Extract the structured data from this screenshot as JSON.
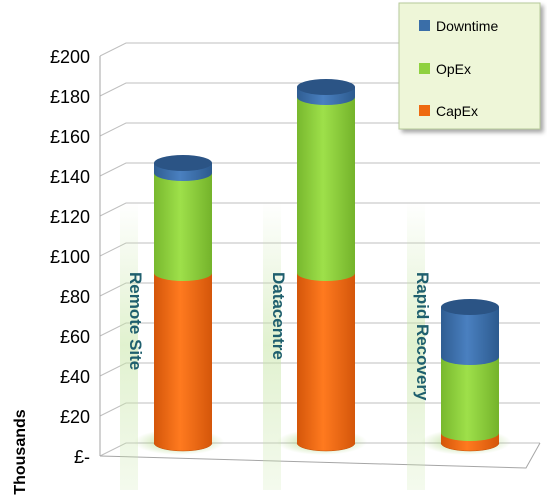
{
  "chart_data": {
    "type": "bar",
    "stacked": true,
    "style": "3d-cylinder",
    "categories": [
      "Remote Site",
      "Datacentre",
      "Rapid Recovery"
    ],
    "series": [
      {
        "name": "CapEx",
        "values": [
          85,
          85,
          5
        ],
        "color": "#ee6a10"
      },
      {
        "name": "OpEx",
        "values": [
          50,
          88,
          38
        ],
        "color": "#8fd13f"
      },
      {
        "name": "Downtime",
        "values": [
          5,
          5,
          25
        ],
        "color": "#3a6ea8"
      }
    ],
    "ylabel": "Thousands",
    "ylim": [
      0,
      200
    ],
    "yticks": [
      {
        "value": 0,
        "label": "£-"
      },
      {
        "value": 20,
        "label": "£20"
      },
      {
        "value": 40,
        "label": "£40"
      },
      {
        "value": 60,
        "label": "£60"
      },
      {
        "value": 80,
        "label": "£80"
      },
      {
        "value": 100,
        "label": "£100"
      },
      {
        "value": 120,
        "label": "£120"
      },
      {
        "value": 140,
        "label": "£140"
      },
      {
        "value": 160,
        "label": "£160"
      },
      {
        "value": 180,
        "label": "£180"
      },
      {
        "value": 200,
        "label": "£200"
      }
    ],
    "legend": {
      "position": "top-right",
      "entries": [
        "Downtime",
        "OpEx",
        "CapEx"
      ]
    },
    "grid": true
  }
}
